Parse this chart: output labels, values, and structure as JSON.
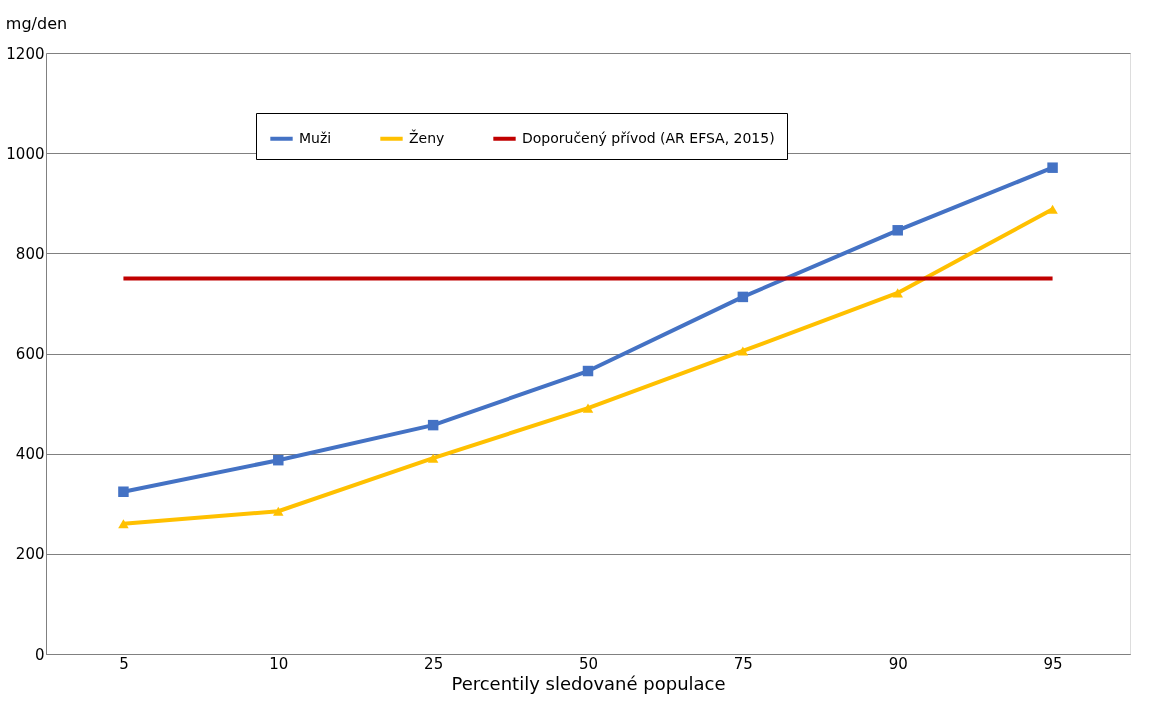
{
  "chart_data": {
    "type": "line",
    "ylabel": "mg/den",
    "xlabel": "Percentily sledované populace",
    "categories": [
      "5",
      "10",
      "25",
      "50",
      "75",
      "90",
      "95"
    ],
    "series": [
      {
        "name": "Muži",
        "color": "#4472c4",
        "marker": "square",
        "values": [
          324,
          387,
          457,
          565,
          713,
          846,
          971
        ]
      },
      {
        "name": "Ženy",
        "color": "#ffc000",
        "marker": "triangle",
        "values": [
          260,
          285,
          391,
          491,
          605,
          721,
          888
        ]
      },
      {
        "name": "Doporučený přívod (AR EFSA, 2015)",
        "color": "#c00000",
        "marker": "none",
        "values": [
          750,
          750,
          750,
          750,
          750,
          750,
          750
        ]
      }
    ],
    "ylim": [
      0,
      1200
    ],
    "yticks": [
      0,
      200,
      400,
      600,
      800,
      1000,
      1200
    ],
    "grid": "y",
    "legend": "top"
  }
}
